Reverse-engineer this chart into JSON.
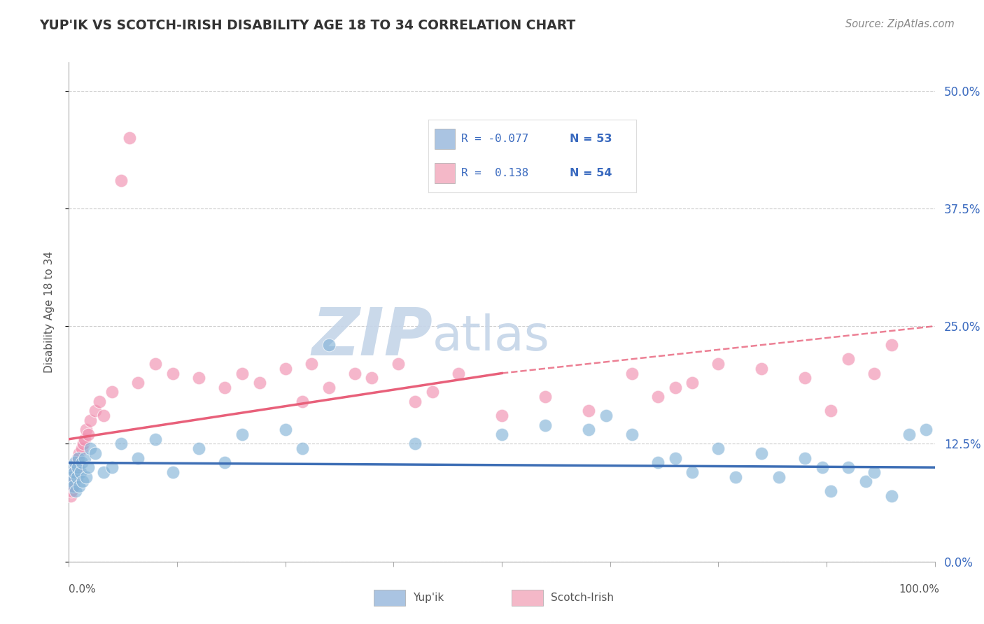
{
  "title": "YUP'IK VS SCOTCH-IRISH DISABILITY AGE 18 TO 34 CORRELATION CHART",
  "source": "Source: ZipAtlas.com",
  "ylabel": "Disability Age 18 to 34",
  "legend_entry1_label": "Yup'ik",
  "legend_entry1_r": "-0.077",
  "legend_entry1_n": "53",
  "legend_entry1_color": "#aac4e2",
  "legend_entry2_label": "Scotch-Irish",
  "legend_entry2_r": "0.138",
  "legend_entry2_n": "54",
  "legend_entry2_color": "#f4b8c8",
  "yup_color": "#85b4d8",
  "scotch_color": "#f090b0",
  "trendline_yup_color": "#3d6eb5",
  "trendline_scotch_color": "#e8607a",
  "bg_color": "#ffffff",
  "grid_color": "#cccccc",
  "watermark_zip": "ZIP",
  "watermark_atlas": "atlas",
  "watermark_color_zip": "#c5d5e8",
  "watermark_color_atlas": "#c5d5e8",
  "ytick_values": [
    0.0,
    12.5,
    25.0,
    37.5,
    50.0
  ],
  "xlim": [
    0,
    100
  ],
  "ylim": [
    0,
    53
  ],
  "yup_x": [
    0.2,
    0.3,
    0.4,
    0.5,
    0.6,
    0.7,
    0.8,
    0.9,
    1.0,
    1.1,
    1.2,
    1.3,
    1.5,
    1.6,
    1.8,
    2.0,
    2.2,
    2.5,
    3.0,
    4.0,
    5.0,
    6.0,
    8.0,
    10.0,
    12.0,
    15.0,
    18.0,
    20.0,
    25.0,
    27.0,
    30.0,
    40.0,
    50.0,
    55.0,
    60.0,
    62.0,
    65.0,
    68.0,
    70.0,
    72.0,
    75.0,
    77.0,
    80.0,
    82.0,
    85.0,
    87.0,
    88.0,
    90.0,
    92.0,
    93.0,
    95.0,
    97.0,
    99.0
  ],
  "yup_y": [
    10.0,
    9.0,
    8.5,
    8.0,
    9.5,
    10.5,
    7.5,
    9.0,
    10.0,
    11.0,
    8.0,
    9.5,
    10.5,
    8.5,
    11.0,
    9.0,
    10.0,
    12.0,
    11.5,
    9.5,
    10.0,
    12.5,
    11.0,
    13.0,
    9.5,
    12.0,
    10.5,
    13.5,
    14.0,
    12.0,
    23.0,
    12.5,
    13.5,
    14.5,
    14.0,
    15.5,
    13.5,
    10.5,
    11.0,
    9.5,
    12.0,
    9.0,
    11.5,
    9.0,
    11.0,
    10.0,
    7.5,
    10.0,
    8.5,
    9.5,
    7.0,
    13.5,
    14.0
  ],
  "scotch_x": [
    0.2,
    0.3,
    0.4,
    0.5,
    0.6,
    0.7,
    0.8,
    0.9,
    1.0,
    1.1,
    1.2,
    1.5,
    1.7,
    1.8,
    2.0,
    2.2,
    2.5,
    3.0,
    3.5,
    4.0,
    5.0,
    6.0,
    7.0,
    8.0,
    10.0,
    12.0,
    15.0,
    18.0,
    20.0,
    22.0,
    25.0,
    27.0,
    28.0,
    30.0,
    33.0,
    35.0,
    38.0,
    40.0,
    42.0,
    45.0,
    50.0,
    55.0,
    60.0,
    65.0,
    68.0,
    70.0,
    72.0,
    75.0,
    80.0,
    85.0,
    88.0,
    90.0,
    93.0,
    95.0
  ],
  "scotch_y": [
    7.0,
    7.5,
    8.0,
    9.0,
    8.5,
    9.5,
    10.0,
    10.5,
    11.0,
    10.0,
    11.5,
    12.0,
    12.5,
    13.0,
    14.0,
    13.5,
    15.0,
    16.0,
    17.0,
    15.5,
    18.0,
    40.5,
    45.0,
    19.0,
    21.0,
    20.0,
    19.5,
    18.5,
    20.0,
    19.0,
    20.5,
    17.0,
    21.0,
    18.5,
    20.0,
    19.5,
    21.0,
    17.0,
    18.0,
    20.0,
    15.5,
    17.5,
    16.0,
    20.0,
    17.5,
    18.5,
    19.0,
    21.0,
    20.5,
    19.5,
    16.0,
    21.5,
    20.0,
    23.0
  ]
}
